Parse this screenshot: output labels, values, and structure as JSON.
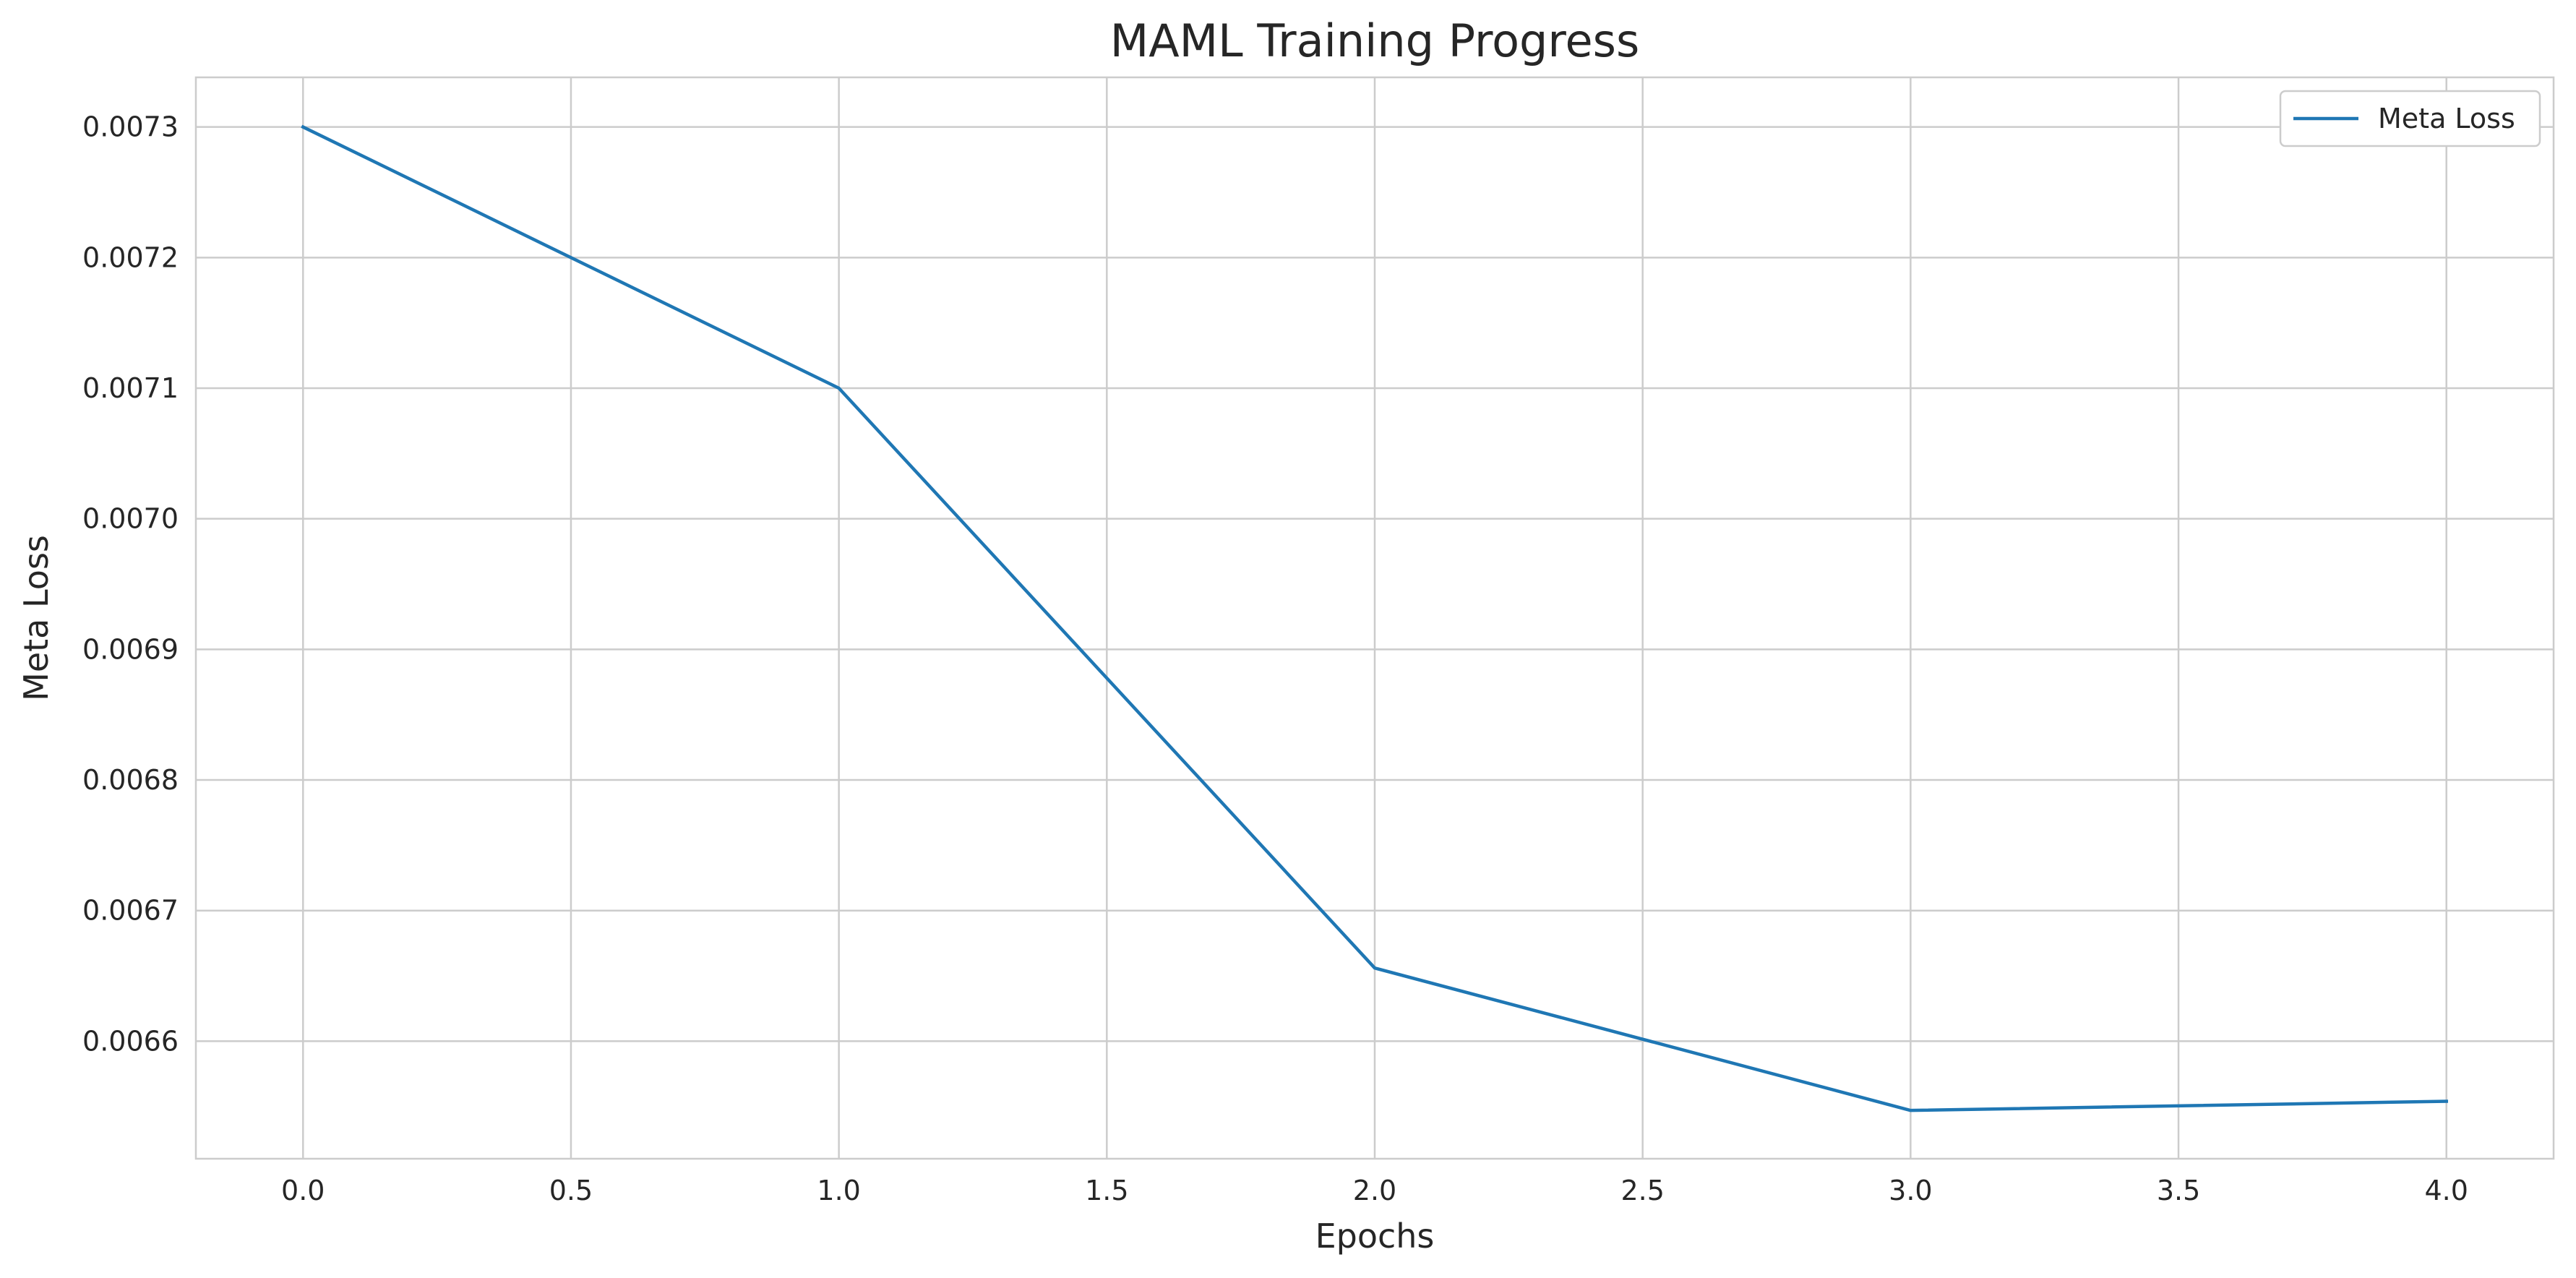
{
  "chart_data": {
    "type": "line",
    "title": "MAML Training Progress",
    "xlabel": "Epochs",
    "ylabel": "Meta Loss",
    "xlim": [
      -0.2,
      4.2
    ],
    "ylim": [
      0.00651,
      0.007338
    ],
    "x_ticks": [
      0.0,
      0.5,
      1.0,
      1.5,
      2.0,
      2.5,
      3.0,
      3.5,
      4.0
    ],
    "x_tick_labels": [
      "0.0",
      "0.5",
      "1.0",
      "1.5",
      "2.0",
      "2.5",
      "3.0",
      "3.5",
      "4.0"
    ],
    "y_ticks": [
      0.0066,
      0.0067,
      0.0068,
      0.0069,
      0.007,
      0.0071,
      0.0072,
      0.0073
    ],
    "y_tick_labels": [
      "0.0066",
      "0.0067",
      "0.0068",
      "0.0069",
      "0.0070",
      "0.0071",
      "0.0072",
      "0.0073"
    ],
    "grid": true,
    "legend_position": "top-right",
    "series": [
      {
        "name": "Meta Loss",
        "color": "#1f77b4",
        "x": [
          0,
          1,
          2,
          3,
          4
        ],
        "y": [
          0.0073,
          0.0071,
          0.006656,
          0.006547,
          0.006554
        ]
      }
    ]
  }
}
